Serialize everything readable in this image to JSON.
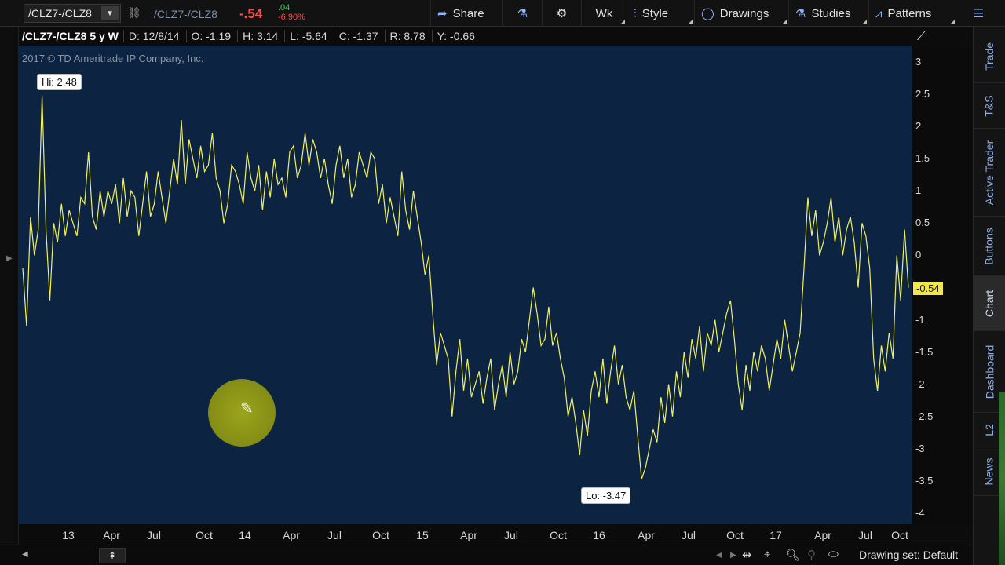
{
  "toolbar": {
    "symbol": "/CLZ7-/CLZ8",
    "symbol_secondary": "/CLZ7-/CLZ8",
    "change": "-.54",
    "change_abs": ".04",
    "change_pct": "-6.90%",
    "share_label": "Share",
    "period_label": "Wk",
    "style_label": "Style",
    "drawings_label": "Drawings",
    "studies_label": "Studies",
    "patterns_label": "Patterns"
  },
  "info_line": {
    "title": "/CLZ7-/CLZ8 5 y W",
    "date": "D: 12/8/14",
    "open": "O: -1.19",
    "high": "H: 3.14",
    "low": "L: -5.64",
    "close": "C: -1.37",
    "range": "R: 8.78",
    "y": "Y: -0.66"
  },
  "chart": {
    "copyright": "2017 © TD Ameritrade IP Company, Inc.",
    "hi_label": "Hi: 2.48",
    "lo_label": "Lo: -3.47",
    "last_price": "-0.54",
    "colors": {
      "line": "#f0f060",
      "background": "#0c2442",
      "last_price_bg": "#f2e84d"
    }
  },
  "chart_data": {
    "type": "line",
    "series": [
      {
        "values": [
          -0.2,
          -1.1,
          0.6,
          0.0,
          0.4,
          2.48,
          0.4,
          -0.7,
          0.5,
          0.2,
          0.8,
          0.3,
          0.7,
          0.5,
          0.3,
          0.9,
          0.8,
          1.6,
          0.6,
          0.4,
          1.0,
          0.6,
          1.0,
          0.8,
          1.1,
          0.5,
          1.2,
          0.6,
          1.0,
          0.9,
          0.3,
          0.8,
          1.3,
          0.6,
          0.8,
          1.3,
          0.9,
          0.5,
          1.0,
          1.5,
          1.1,
          2.1,
          1.1,
          1.8,
          1.5,
          1.2,
          1.7,
          1.3,
          1.4,
          1.9,
          1.2,
          1.0,
          0.5,
          0.8,
          1.4,
          1.3,
          1.1,
          0.8,
          1.6,
          1.2,
          1.0,
          1.4,
          0.7,
          1.3,
          0.9,
          1.5,
          1.1,
          1.2,
          0.9,
          1.6,
          1.7,
          1.2,
          1.4,
          1.9,
          1.4,
          1.8,
          1.6,
          1.2,
          1.5,
          1.1,
          0.8,
          1.4,
          1.7,
          1.2,
          1.5,
          0.9,
          1.1,
          1.6,
          1.4,
          1.2,
          1.6,
          1.5,
          0.8,
          1.1,
          0.5,
          0.9,
          0.6,
          0.3,
          1.3,
          0.7,
          0.4,
          1.0,
          0.6,
          0.2,
          -0.3,
          0.0,
          -0.9,
          -1.7,
          -1.2,
          -1.4,
          -1.6,
          -2.5,
          -1.8,
          -1.3,
          -2.1,
          -1.6,
          -2.2,
          -2.0,
          -1.8,
          -2.3,
          -1.9,
          -1.6,
          -2.4,
          -2.0,
          -1.7,
          -2.2,
          -1.5,
          -2.0,
          -1.8,
          -1.3,
          -1.5,
          -1.0,
          -0.5,
          -0.9,
          -1.4,
          -1.3,
          -0.8,
          -1.4,
          -1.2,
          -1.6,
          -1.9,
          -2.5,
          -2.2,
          -2.6,
          -3.1,
          -2.4,
          -2.8,
          -2.1,
          -1.8,
          -2.2,
          -1.6,
          -2.3,
          -1.8,
          -1.4,
          -2.0,
          -1.7,
          -2.2,
          -2.4,
          -2.1,
          -2.8,
          -3.47,
          -3.3,
          -3.0,
          -2.7,
          -2.9,
          -2.2,
          -2.6,
          -2.0,
          -2.5,
          -1.8,
          -2.2,
          -1.5,
          -1.9,
          -1.3,
          -1.6,
          -1.1,
          -1.8,
          -1.2,
          -1.4,
          -1.0,
          -1.5,
          -1.2,
          -0.9,
          -0.7,
          -1.3,
          -2.0,
          -2.4,
          -1.7,
          -2.1,
          -1.5,
          -1.8,
          -1.4,
          -1.6,
          -2.1,
          -1.7,
          -1.3,
          -1.6,
          -1.0,
          -1.4,
          -1.8,
          -1.5,
          -1.2,
          -0.2,
          0.9,
          0.3,
          0.7,
          0.0,
          0.2,
          0.5,
          0.9,
          0.2,
          0.6,
          0.0,
          0.4,
          0.6,
          0.2,
          -0.5,
          0.5,
          0.3,
          -0.2,
          -1.6,
          -2.1,
          -1.4,
          -1.8,
          -1.2,
          -1.6,
          0.0,
          -0.7,
          0.4,
          -0.5
        ],
        "color": "#f0f060"
      }
    ],
    "x_ticks": [
      "13",
      "Apr",
      "Jul",
      "Oct",
      "14",
      "Apr",
      "Jul",
      "Oct",
      "15",
      "Apr",
      "Jul",
      "Oct",
      "16",
      "Apr",
      "Jul",
      "Oct",
      "17",
      "Apr",
      "Jul",
      "Oct"
    ],
    "y_ticks": [
      "3",
      "2.5",
      "2",
      "1.5",
      "1",
      "0.5",
      "0",
      "-0.5",
      "-1",
      "-1.5",
      "-2",
      "-2.5",
      "-3",
      "-3.5",
      "-4"
    ],
    "ylim": [
      -4,
      3
    ],
    "last_value": -0.54
  },
  "bottom": {
    "drawing_set": "Drawing set: Default"
  },
  "sidebar": {
    "tabs": [
      {
        "label": "Trade"
      },
      {
        "label": "T&S"
      },
      {
        "label": "Active Trader"
      },
      {
        "label": "Buttons"
      },
      {
        "label": "Chart"
      },
      {
        "label": "Dashboard"
      },
      {
        "label": "L2"
      },
      {
        "label": "News"
      }
    ]
  }
}
